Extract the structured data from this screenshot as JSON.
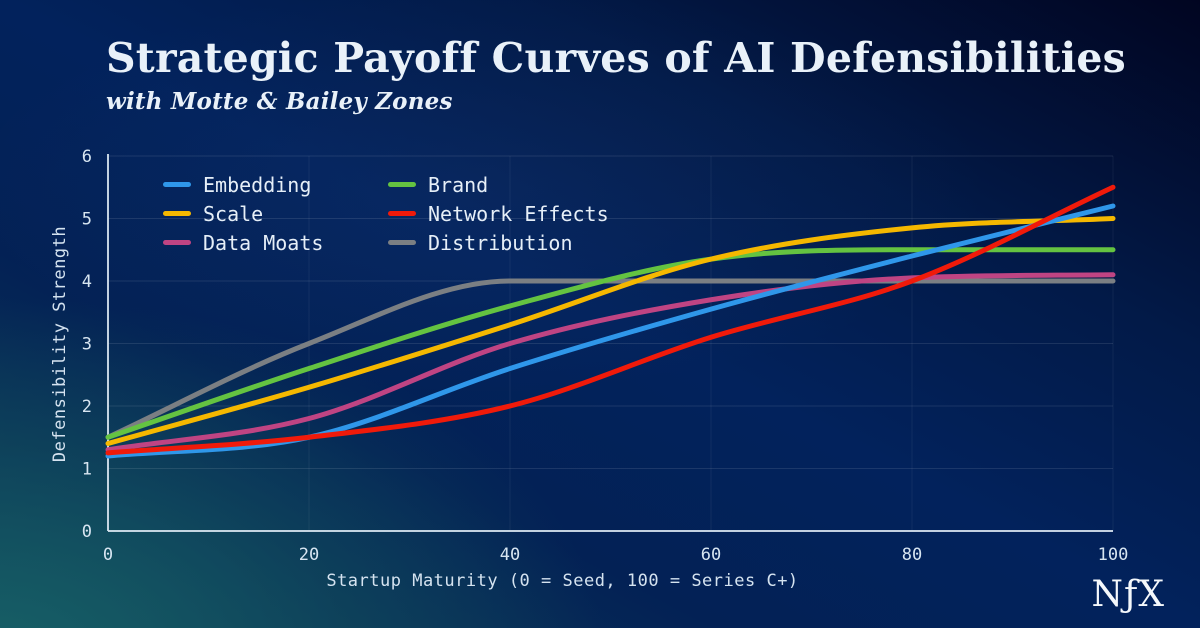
{
  "page": {
    "title": "Strategic Payoff Curves of AI Defensibilities",
    "subtitle": "with Motte & Bailey Zones",
    "logo_text": "NƒX"
  },
  "colors": {
    "background_teal": "#155a63",
    "background_navy": "#03215a",
    "background_dark": "#010521",
    "text_primary": "#e9f1f9",
    "text_chart": "#d5e3f0",
    "axis_line": "#d8e5f0",
    "gridline": "rgba(255,255,255,0.10)"
  },
  "chart_data": {
    "type": "line",
    "title": "Strategic Payoff Curves of AI Defensibilities",
    "subtitle": "with Motte & Bailey Zones",
    "xlabel": "Startup Maturity (0 = Seed, 100 = Series C+)",
    "ylabel": "Defensibility Strength",
    "xlim": [
      0,
      100
    ],
    "ylim": [
      0,
      6
    ],
    "x_ticks": [
      0,
      20,
      40,
      60,
      80,
      100
    ],
    "y_ticks": [
      0,
      1,
      2,
      3,
      4,
      5,
      6
    ],
    "grid": true,
    "legend_position": "inside top-left, two columns",
    "x": [
      0,
      20,
      40,
      60,
      80,
      100
    ],
    "series": [
      {
        "name": "Embedding",
        "color": "#2f97ea",
        "values": [
          1.2,
          1.5,
          2.6,
          3.55,
          4.4,
          5.2
        ]
      },
      {
        "name": "Scale",
        "color": "#f5b800",
        "values": [
          1.4,
          2.3,
          3.3,
          4.35,
          4.85,
          5.0
        ]
      },
      {
        "name": "Data Moats",
        "color": "#bf4483",
        "values": [
          1.3,
          1.8,
          3.0,
          3.7,
          4.05,
          4.1
        ]
      },
      {
        "name": "Brand",
        "color": "#64c341",
        "values": [
          1.5,
          2.6,
          3.6,
          4.35,
          4.5,
          4.5
        ]
      },
      {
        "name": "Network Effects",
        "color": "#f01a0a",
        "values": [
          1.25,
          1.5,
          2.0,
          3.1,
          4.0,
          5.5
        ]
      },
      {
        "name": "Distribution",
        "color": "#7b7f83",
        "values": [
          1.5,
          3.0,
          4.0,
          4.0,
          4.0,
          4.0
        ]
      }
    ],
    "draw_order": [
      5,
      2,
      3,
      1,
      0,
      4
    ],
    "line_width": 5
  }
}
